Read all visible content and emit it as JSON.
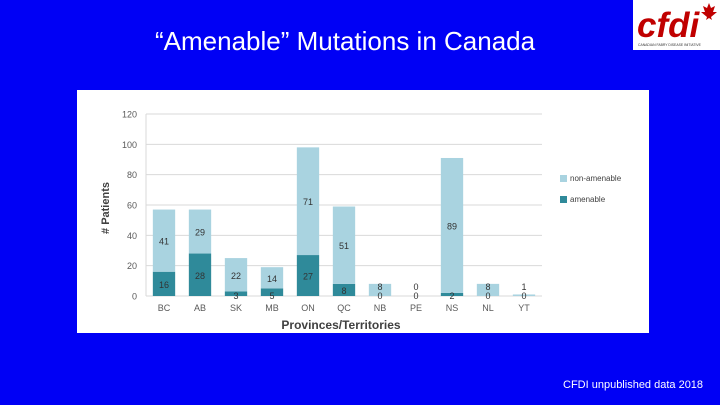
{
  "slide": {
    "title": "“Amenable” Mutations in Canada",
    "footnote": "CFDI unpublished data 2018"
  },
  "logo": {
    "wordmark": "cfdi",
    "tagline": "CANADIAN FABRY DISEASE INITIATIVE",
    "icon": "maple-leaf-icon"
  },
  "colors": {
    "background": "#0000f5",
    "amenable": "#2f8a9a",
    "non_amenable": "#a9d3e0",
    "grid": "#d9d9d9",
    "axis_text": "#595959"
  },
  "chart_data": {
    "type": "bar",
    "stacked": true,
    "categories": [
      "BC",
      "AB",
      "SK",
      "MB",
      "ON",
      "QC",
      "NB",
      "PE",
      "NS",
      "NL",
      "YT"
    ],
    "series": [
      {
        "name": "amenable",
        "values": [
          16,
          28,
          3,
          5,
          27,
          8,
          0,
          0,
          2,
          0,
          0
        ]
      },
      {
        "name": "non-amenable",
        "values": [
          41,
          29,
          22,
          14,
          71,
          51,
          8,
          0,
          89,
          8,
          1
        ]
      }
    ],
    "data_labels": {
      "amenable": [
        "16",
        "28",
        "3",
        "5",
        "27",
        "8",
        "0",
        "0",
        "2",
        "0",
        "0"
      ],
      "non-amenable": [
        "41",
        "29",
        "22",
        "14",
        "71",
        "51",
        "8",
        "0",
        "89",
        "8",
        "1"
      ]
    },
    "xlabel": "Provinces/Territories",
    "ylabel": "# Patients",
    "ylim": [
      0,
      120
    ],
    "yticks": [
      0,
      20,
      40,
      60,
      80,
      100,
      120
    ],
    "grid": true,
    "legend": {
      "placement": "right",
      "entries": [
        {
          "label": "non-amenable",
          "series": "non-amenable"
        },
        {
          "label": "amenable",
          "series": "amenable"
        }
      ]
    }
  }
}
